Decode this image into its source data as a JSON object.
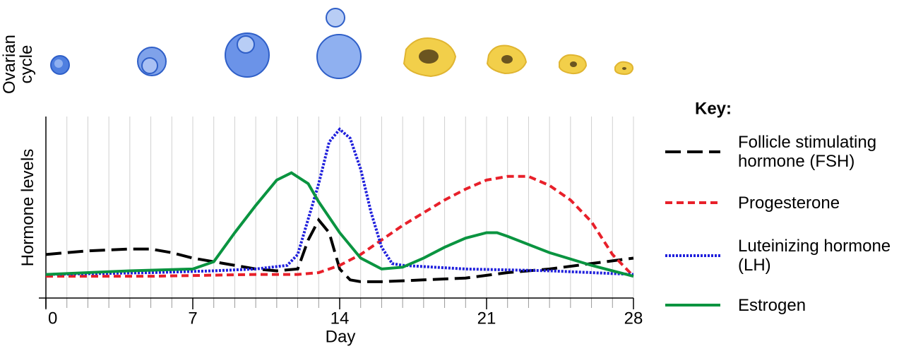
{
  "chart_data": {
    "type": "line",
    "section_label": "Ovarian cycle",
    "ylabel": "Hormone levels",
    "xlabel": "Day",
    "legend_title": "Key:",
    "xlim": [
      0,
      28
    ],
    "ylim": [
      0,
      100
    ],
    "xticks": [
      0,
      7,
      14,
      21,
      28
    ],
    "grid": true,
    "series": [
      {
        "name": "Follicle stimulating hormone (FSH)",
        "color": "#000000",
        "dash": "22 9",
        "x": [
          0,
          2,
          4,
          5,
          6,
          7,
          8,
          9,
          10,
          11,
          12,
          12.5,
          13,
          13.5,
          14,
          14.5,
          15,
          16,
          18,
          20,
          22,
          24,
          26,
          28
        ],
        "values": [
          24,
          26,
          27,
          27,
          25,
          22,
          20,
          18,
          16,
          15,
          16,
          32,
          43,
          36,
          16,
          10,
          9,
          9,
          10,
          11,
          14,
          16,
          19,
          22
        ]
      },
      {
        "name": "Progesterone",
        "color": "#e8202a",
        "dash": "10 6",
        "x": [
          0,
          5,
          10,
          12,
          13,
          14,
          15,
          16,
          17,
          18,
          19,
          20,
          21,
          22,
          23,
          24,
          25,
          26,
          27,
          28
        ],
        "values": [
          12,
          12,
          13,
          13,
          14,
          18,
          24,
          32,
          40,
          47,
          54,
          60,
          65,
          67,
          67,
          62,
          54,
          42,
          24,
          12
        ]
      },
      {
        "name": "Luteinizing hormone (LH)",
        "color": "#1f1fdc",
        "dash": "3 2",
        "x": [
          0,
          5,
          8,
          10,
          11.5,
          12,
          13,
          13.5,
          14,
          14.5,
          15,
          15.5,
          16,
          16.5,
          17,
          20,
          24,
          28
        ],
        "values": [
          13,
          14,
          15,
          16,
          18,
          24,
          63,
          86,
          93,
          88,
          71,
          47,
          28,
          19,
          18,
          16,
          15,
          13
        ]
      },
      {
        "name": "Estrogen",
        "color": "#0a9440",
        "dash": "none",
        "x": [
          0,
          4,
          7,
          8,
          9,
          10,
          11,
          11.7,
          12.5,
          13,
          14,
          15,
          16,
          17,
          18,
          19,
          20,
          21,
          21.5,
          22,
          24,
          26,
          28
        ],
        "values": [
          13,
          15,
          16,
          20,
          36,
          51,
          65,
          69,
          63,
          53,
          36,
          22,
          16,
          17,
          22,
          28,
          33,
          36,
          36,
          34,
          25,
          18,
          12
        ]
      }
    ]
  }
}
